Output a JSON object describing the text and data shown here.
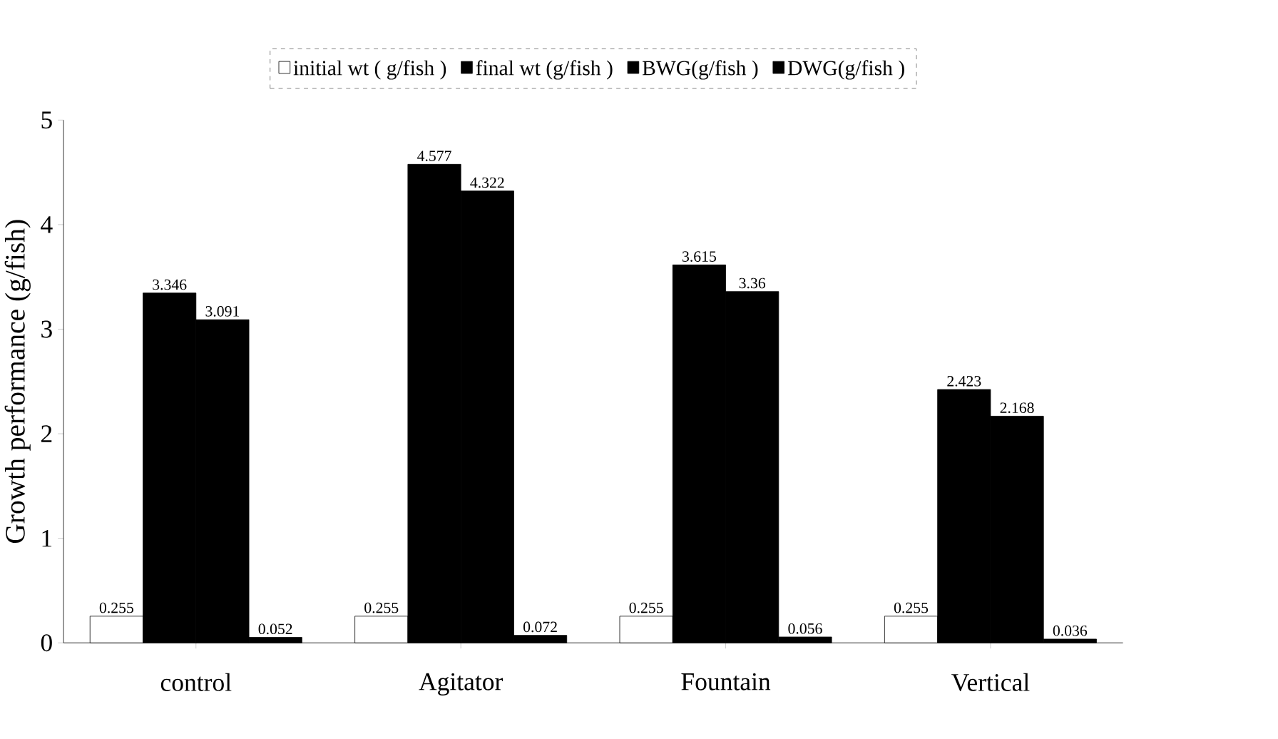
{
  "chart_data": {
    "type": "bar",
    "ylabel": "Growth performance (g/fish)",
    "categories": [
      "control",
      "Agitator",
      "Fountain",
      "Vertical"
    ],
    "series": [
      {
        "name": "initial wt ( g/fish )",
        "color": "#ffffff",
        "values": [
          0.255,
          0.255,
          0.255,
          0.255
        ]
      },
      {
        "name": "final wt (g/fish )",
        "color": "#000000",
        "values": [
          3.346,
          4.577,
          3.615,
          2.423
        ]
      },
      {
        "name": "BWG(g/fish )",
        "color": "#000000",
        "values": [
          3.091,
          4.322,
          3.36,
          2.168
        ]
      },
      {
        "name": "DWG(g/fish )",
        "color": "#000000",
        "values": [
          0.052,
          0.072,
          0.056,
          0.036
        ]
      }
    ],
    "ylim": [
      0,
      5
    ],
    "yticks": [
      0,
      1,
      2,
      3,
      4,
      5
    ],
    "data_labels": true,
    "legend": "top",
    "grid": false
  }
}
